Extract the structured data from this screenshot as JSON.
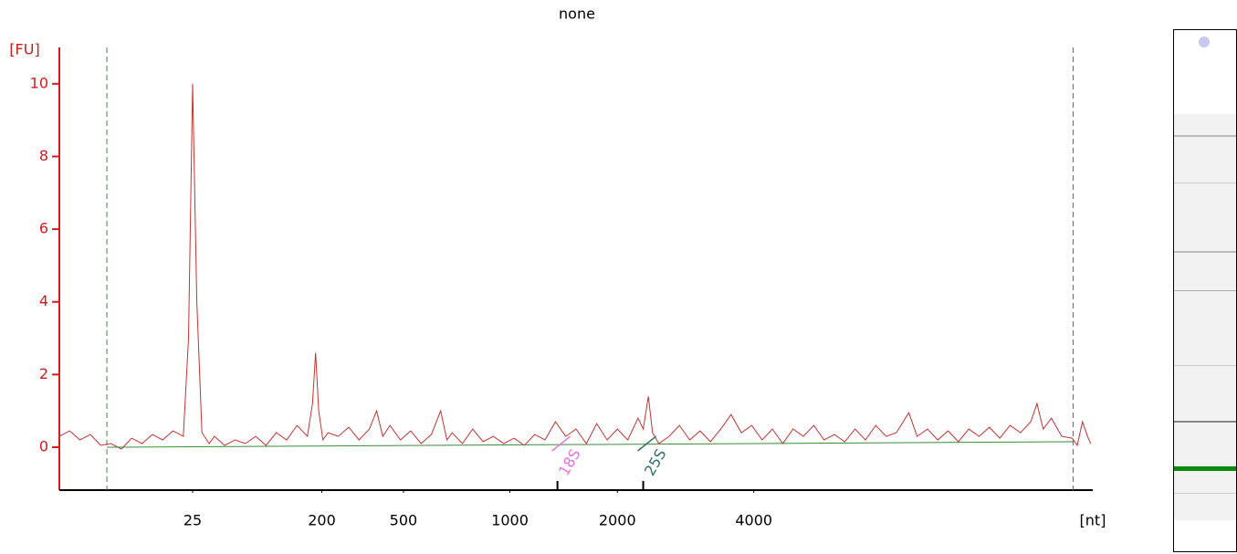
{
  "chart_data": {
    "type": "line",
    "title": "none",
    "y_label": "[FU]",
    "x_label": "[nt]",
    "xlim": [
      0,
      100
    ],
    "ylim": [
      -1.18,
      11
    ],
    "yticks": [
      0,
      2,
      4,
      6,
      8,
      10
    ],
    "xticks": [
      {
        "value": 12.9,
        "label": "25"
      },
      {
        "value": 25.4,
        "label": "200"
      },
      {
        "value": 33.3,
        "label": "500"
      },
      {
        "value": 43.6,
        "label": "1000"
      },
      {
        "value": 54.0,
        "label": "2000"
      },
      {
        "value": 67.2,
        "label": "4000"
      }
    ],
    "axis_color": "#d01c1c",
    "boundaries": [
      4.6,
      98.1
    ],
    "markers": [
      {
        "label": "18S",
        "x": 48.2,
        "color": "#ee70e0"
      },
      {
        "label": "25S",
        "x": 56.5,
        "color": "#2f6f6f"
      }
    ],
    "series": [
      {
        "color": "#c83232",
        "x": [
          0,
          1,
          2,
          3,
          4,
          5,
          6,
          7,
          8,
          9,
          10,
          11,
          12,
          12.5,
          12.9,
          13.3,
          13.8,
          14.5,
          15,
          16,
          17,
          18,
          19,
          20,
          21,
          22,
          23,
          24,
          24.5,
          24.8,
          25.1,
          25.5,
          26,
          27,
          28,
          29,
          30,
          30.7,
          31.3,
          32,
          33,
          34,
          35,
          36,
          36.9,
          37.5,
          38,
          39,
          40,
          41,
          42,
          43,
          44,
          45,
          46,
          47,
          48,
          49,
          50,
          51,
          52,
          53,
          54,
          55,
          56,
          56.5,
          57,
          57.4,
          58,
          59,
          60,
          61,
          62,
          63,
          64,
          65,
          66,
          67,
          68,
          69,
          70,
          71,
          72,
          73,
          74,
          75,
          76,
          77,
          78,
          79,
          80,
          81,
          82.2,
          83,
          84,
          85,
          86,
          87,
          88,
          89,
          90,
          91,
          92,
          93,
          94,
          94.6,
          95.2,
          96,
          97,
          98,
          98.5,
          99,
          99.5,
          99.8
        ],
        "values": [
          0.3,
          0.45,
          0.2,
          0.35,
          0.05,
          0.1,
          -0.05,
          0.25,
          0.1,
          0.35,
          0.2,
          0.45,
          0.3,
          3,
          10,
          4,
          0.4,
          0.1,
          0.3,
          0.05,
          0.2,
          0.1,
          0.3,
          0.05,
          0.4,
          0.2,
          0.6,
          0.3,
          1.2,
          2.6,
          1.0,
          0.2,
          0.4,
          0.3,
          0.55,
          0.2,
          0.5,
          1.0,
          0.3,
          0.6,
          0.2,
          0.45,
          0.1,
          0.35,
          1.0,
          0.2,
          0.4,
          0.1,
          0.5,
          0.15,
          0.3,
          0.1,
          0.25,
          0.05,
          0.35,
          0.2,
          0.7,
          0.3,
          0.5,
          0.1,
          0.65,
          0.2,
          0.5,
          0.2,
          0.8,
          0.5,
          1.4,
          0.4,
          0.1,
          0.3,
          0.6,
          0.2,
          0.45,
          0.15,
          0.5,
          0.9,
          0.4,
          0.6,
          0.2,
          0.5,
          0.1,
          0.5,
          0.3,
          0.6,
          0.2,
          0.35,
          0.15,
          0.5,
          0.2,
          0.6,
          0.3,
          0.4,
          0.95,
          0.3,
          0.5,
          0.2,
          0.45,
          0.15,
          0.5,
          0.3,
          0.55,
          0.25,
          0.6,
          0.4,
          0.7,
          1.2,
          0.5,
          0.8,
          0.3,
          0.25,
          0.05,
          0.7,
          0.3,
          0.1
        ]
      },
      {
        "color": "#3a8a3a",
        "x": [
          4.6,
          98.1
        ],
        "values": [
          0,
          0.15
        ]
      }
    ]
  }
}
